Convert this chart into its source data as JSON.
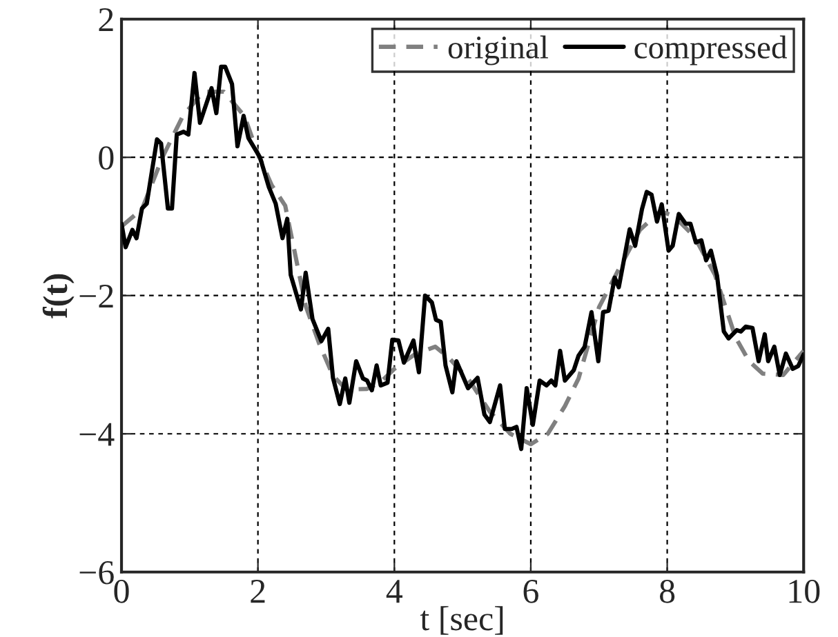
{
  "chart_data": {
    "type": "line",
    "xlabel": "t [sec]",
    "ylabel": "f(t)",
    "xlim": [
      0,
      10
    ],
    "ylim": [
      -6,
      2
    ],
    "xticks": [
      0,
      2,
      4,
      6,
      8,
      10
    ],
    "yticks": [
      -6,
      -4,
      -2,
      0,
      2
    ],
    "grid": true,
    "legend": "top right",
    "marker": "none",
    "series": [
      {
        "name": "original",
        "color": "#808080",
        "line_style": "dashed",
        "x": [
          0,
          0.3,
          0.6,
          0.9,
          1.2,
          1.5,
          1.8,
          2.0,
          2.2,
          2.4,
          2.7,
          2.9,
          3.1,
          3.3,
          3.6,
          3.8,
          4.0,
          4.3,
          4.6,
          4.8,
          5.1,
          5.4,
          5.7,
          6.0,
          6.25,
          6.5,
          6.7,
          7.0,
          7.3,
          7.6,
          7.9,
          8.1,
          8.4,
          8.7,
          9.0,
          9.2,
          9.4,
          9.7,
          10.0
        ],
        "values": [
          -1.0,
          -0.75,
          0.0,
          0.6,
          0.95,
          0.95,
          0.6,
          0.05,
          -0.4,
          -0.7,
          -2.15,
          -2.7,
          -3.16,
          -3.36,
          -3.35,
          -3.25,
          -3.06,
          -2.85,
          -2.74,
          -2.9,
          -3.23,
          -3.68,
          -4.0,
          -4.15,
          -4.0,
          -3.6,
          -3.2,
          -2.17,
          -1.6,
          -1.05,
          -0.78,
          -0.85,
          -1.15,
          -1.7,
          -2.6,
          -2.95,
          -3.13,
          -3.15,
          -2.8
        ]
      },
      {
        "name": "compressed",
        "color": "#000000",
        "line_style": "solid",
        "x": [
          0,
          0.06,
          0.16,
          0.22,
          0.3,
          0.37,
          0.52,
          0.58,
          0.68,
          0.74,
          0.81,
          0.91,
          0.98,
          1.07,
          1.15,
          1.32,
          1.39,
          1.46,
          1.52,
          1.62,
          1.7,
          1.79,
          1.86,
          2.03,
          2.16,
          2.26,
          2.36,
          2.43,
          2.48,
          2.63,
          2.7,
          2.8,
          2.93,
          3.03,
          3.1,
          3.2,
          3.28,
          3.34,
          3.44,
          3.54,
          3.6,
          3.67,
          3.74,
          3.8,
          3.9,
          3.97,
          4.06,
          4.14,
          4.28,
          4.36,
          4.45,
          4.55,
          4.61,
          4.68,
          4.75,
          4.85,
          4.91,
          5.08,
          5.22,
          5.32,
          5.4,
          5.55,
          5.62,
          5.72,
          5.79,
          5.86,
          5.94,
          6.03,
          6.13,
          6.23,
          6.3,
          6.36,
          6.43,
          6.5,
          6.63,
          6.7,
          6.79,
          6.89,
          6.99,
          7.06,
          7.14,
          7.23,
          7.29,
          7.45,
          7.53,
          7.63,
          7.7,
          7.77,
          7.85,
          7.92,
          8.02,
          8.08,
          8.17,
          8.27,
          8.34,
          8.42,
          8.5,
          8.57,
          8.64,
          8.73,
          8.83,
          8.9,
          9.02,
          9.08,
          9.15,
          9.25,
          9.34,
          9.43,
          9.48,
          9.57,
          9.65,
          9.74,
          9.84,
          9.92,
          10.0
        ],
        "values": [
          -0.96,
          -1.3,
          -1.05,
          -1.17,
          -0.74,
          -0.67,
          0.26,
          0.2,
          -0.74,
          -0.74,
          0.33,
          0.37,
          0.33,
          1.22,
          0.5,
          1.0,
          0.64,
          1.31,
          1.31,
          1.06,
          0.16,
          0.6,
          0.28,
          0.0,
          -0.43,
          -0.67,
          -1.17,
          -0.89,
          -1.7,
          -2.2,
          -1.67,
          -2.34,
          -2.66,
          -2.48,
          -3.19,
          -3.57,
          -3.2,
          -3.55,
          -2.95,
          -3.2,
          -3.23,
          -3.37,
          -3.01,
          -3.3,
          -3.26,
          -2.64,
          -2.65,
          -2.97,
          -2.65,
          -3.11,
          -2.0,
          -2.1,
          -2.35,
          -2.38,
          -3.01,
          -3.4,
          -2.95,
          -3.34,
          -3.19,
          -3.72,
          -3.83,
          -3.3,
          -3.93,
          -3.93,
          -3.9,
          -4.22,
          -3.34,
          -3.87,
          -3.23,
          -3.3,
          -3.23,
          -3.3,
          -2.8,
          -3.23,
          -3.08,
          -2.87,
          -2.74,
          -2.24,
          -2.95,
          -2.24,
          -2.22,
          -1.74,
          -1.88,
          -1.04,
          -1.28,
          -0.75,
          -0.5,
          -0.54,
          -0.93,
          -0.68,
          -1.35,
          -1.28,
          -0.82,
          -0.96,
          -0.96,
          -1.23,
          -1.2,
          -1.49,
          -1.35,
          -1.71,
          -2.52,
          -2.62,
          -2.5,
          -2.52,
          -2.45,
          -2.47,
          -2.95,
          -2.56,
          -2.95,
          -2.74,
          -3.15,
          -2.84,
          -3.06,
          -3.02,
          -2.85
        ]
      }
    ]
  }
}
